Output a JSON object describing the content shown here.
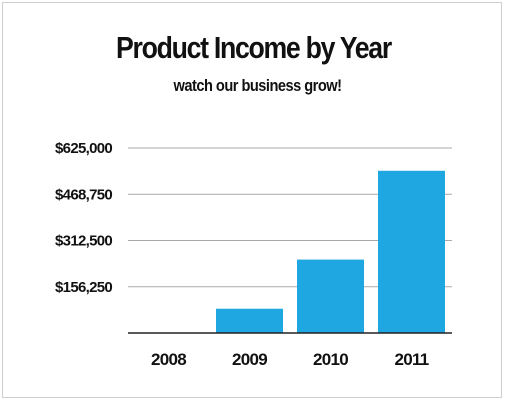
{
  "chart_data": {
    "type": "bar",
    "title": "Product Income by Year",
    "subtitle": "watch our business grow!",
    "categories": [
      "2008",
      "2009",
      "2010",
      "2011"
    ],
    "values": [
      0,
      82000,
      248000,
      548000
    ],
    "yticks": [
      156250,
      312500,
      468750,
      625000
    ],
    "ytick_labels": [
      "$156,250",
      "$312,500",
      "$468,750",
      "$625,000"
    ],
    "ylim": [
      0,
      625000
    ],
    "grid": true,
    "legend": "none",
    "bar_color": "#1ea7e0",
    "grid_color": "#aaaaaa",
    "axis_color": "#222222"
  }
}
